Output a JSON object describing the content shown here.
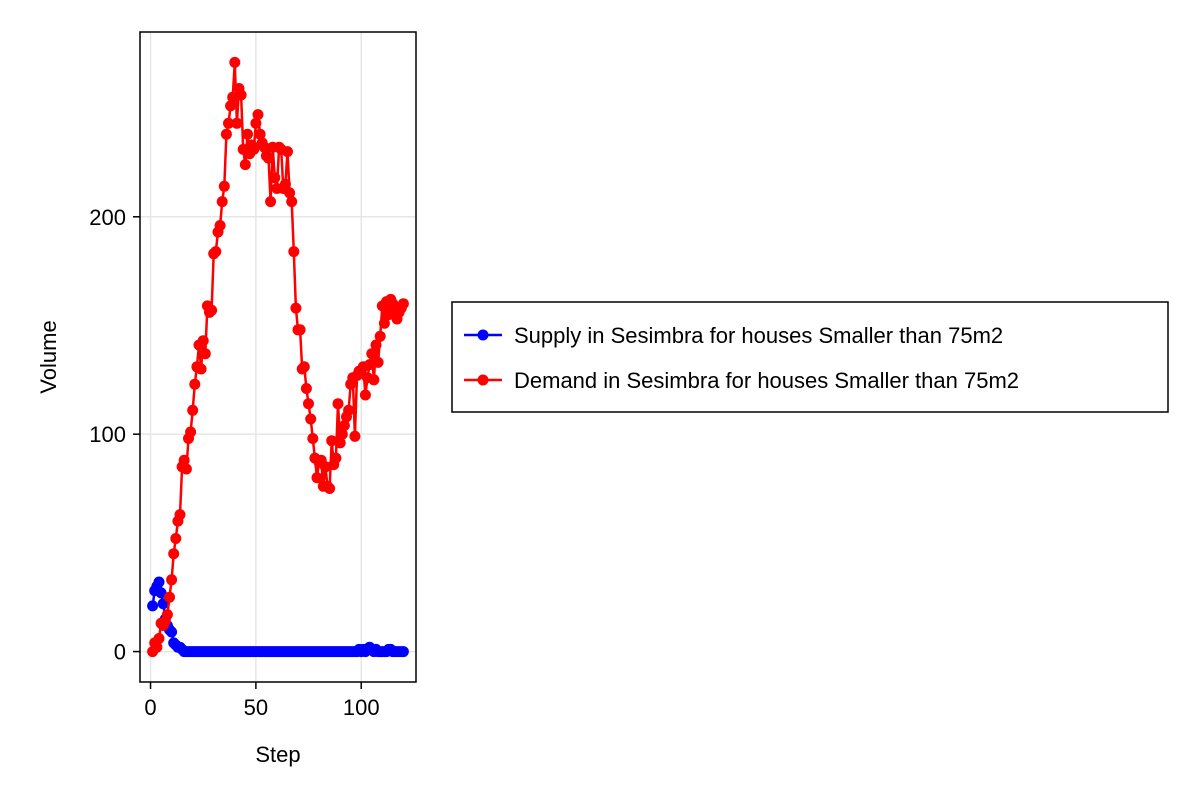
{
  "chart_data": {
    "type": "line",
    "title": "",
    "xlabel": "Step",
    "ylabel": "Volume",
    "xlim": [
      -5,
      126
    ],
    "ylim": [
      -14,
      285
    ],
    "xticks": [
      0,
      50,
      100
    ],
    "yticks": [
      0,
      100,
      200
    ],
    "grid": true,
    "legend_position": "right",
    "series": [
      {
        "name": "Supply in Sesimbra for houses Smaller than 75m2",
        "color": "#0000ff",
        "x": [
          1,
          2,
          3,
          4,
          5,
          6,
          7,
          8,
          9,
          10,
          11,
          12,
          13,
          14,
          15,
          16,
          17,
          18,
          19,
          20,
          21,
          22,
          23,
          24,
          25,
          26,
          27,
          28,
          29,
          30,
          31,
          32,
          33,
          34,
          35,
          36,
          37,
          38,
          39,
          40,
          41,
          42,
          43,
          44,
          45,
          46,
          47,
          48,
          49,
          50,
          51,
          52,
          53,
          54,
          55,
          56,
          57,
          58,
          59,
          60,
          61,
          62,
          63,
          64,
          65,
          66,
          67,
          68,
          69,
          70,
          71,
          72,
          73,
          74,
          75,
          76,
          77,
          78,
          79,
          80,
          81,
          82,
          83,
          84,
          85,
          86,
          87,
          88,
          89,
          90,
          91,
          92,
          93,
          94,
          95,
          96,
          97,
          98,
          99,
          100,
          101,
          102,
          103,
          104,
          105,
          106,
          107,
          108,
          109,
          110,
          111,
          112,
          113,
          114,
          115,
          116,
          117,
          118,
          119,
          120
        ],
        "values": [
          21,
          28,
          30,
          32,
          27,
          22,
          15,
          12,
          10,
          9,
          4,
          3,
          2,
          2,
          1,
          0,
          0,
          0,
          0,
          0,
          0,
          0,
          0,
          0,
          0,
          0,
          0,
          0,
          0,
          0,
          0,
          0,
          0,
          0,
          0,
          0,
          0,
          0,
          0,
          0,
          0,
          0,
          0,
          0,
          0,
          0,
          0,
          0,
          0,
          0,
          0,
          0,
          0,
          0,
          0,
          0,
          0,
          0,
          0,
          0,
          0,
          0,
          0,
          0,
          0,
          0,
          0,
          0,
          0,
          0,
          0,
          0,
          0,
          0,
          0,
          0,
          0,
          0,
          0,
          0,
          0,
          0,
          0,
          0,
          0,
          0,
          0,
          0,
          0,
          0,
          0,
          0,
          0,
          0,
          0,
          0,
          0,
          0,
          1,
          0,
          1,
          0,
          1,
          2,
          1,
          0,
          1,
          0,
          0,
          0,
          0,
          0,
          1,
          1,
          0,
          0,
          0,
          0,
          0,
          0
        ]
      },
      {
        "name": "Demand in Sesimbra for houses Smaller than 75m2",
        "color": "#ff0000",
        "x": [
          1,
          2,
          3,
          4,
          5,
          6,
          7,
          8,
          9,
          10,
          11,
          12,
          13,
          14,
          15,
          16,
          17,
          18,
          19,
          20,
          21,
          22,
          23,
          24,
          25,
          26,
          27,
          28,
          29,
          30,
          31,
          32,
          33,
          34,
          35,
          36,
          37,
          38,
          39,
          40,
          41,
          42,
          43,
          44,
          45,
          46,
          47,
          48,
          49,
          50,
          51,
          52,
          53,
          54,
          55,
          56,
          57,
          58,
          59,
          60,
          61,
          62,
          63,
          64,
          65,
          66,
          67,
          68,
          69,
          70,
          71,
          72,
          73,
          74,
          75,
          76,
          77,
          78,
          79,
          80,
          81,
          82,
          83,
          84,
          85,
          86,
          87,
          88,
          89,
          90,
          91,
          92,
          93,
          94,
          95,
          96,
          97,
          98,
          99,
          100,
          101,
          102,
          103,
          104,
          105,
          106,
          107,
          108,
          109,
          110,
          111,
          112,
          113,
          114,
          115,
          116,
          117,
          118,
          119,
          120
        ],
        "values": [
          0,
          4,
          2,
          6,
          13,
          12,
          14,
          17,
          25,
          33,
          45,
          52,
          60,
          63,
          85,
          88,
          84,
          98,
          101,
          111,
          123,
          131,
          141,
          130,
          143,
          137,
          159,
          156,
          157,
          183,
          184,
          193,
          196,
          207,
          214,
          238,
          243,
          251,
          255,
          271,
          243,
          259,
          256,
          231,
          224,
          238,
          229,
          233,
          231,
          243,
          247,
          238,
          234,
          232,
          228,
          227,
          207,
          232,
          218,
          213,
          232,
          231,
          213,
          215,
          230,
          211,
          207,
          184,
          158,
          148,
          148,
          130,
          131,
          121,
          114,
          107,
          98,
          89,
          80,
          87,
          88,
          76,
          85,
          76,
          75,
          97,
          86,
          89,
          114,
          96,
          100,
          104,
          108,
          111,
          123,
          126,
          99,
          127,
          129,
          128,
          131,
          118,
          126,
          132,
          137,
          125,
          141,
          133,
          145,
          159,
          151,
          161,
          155,
          162,
          160,
          158,
          153,
          156,
          158,
          160
        ]
      }
    ]
  }
}
